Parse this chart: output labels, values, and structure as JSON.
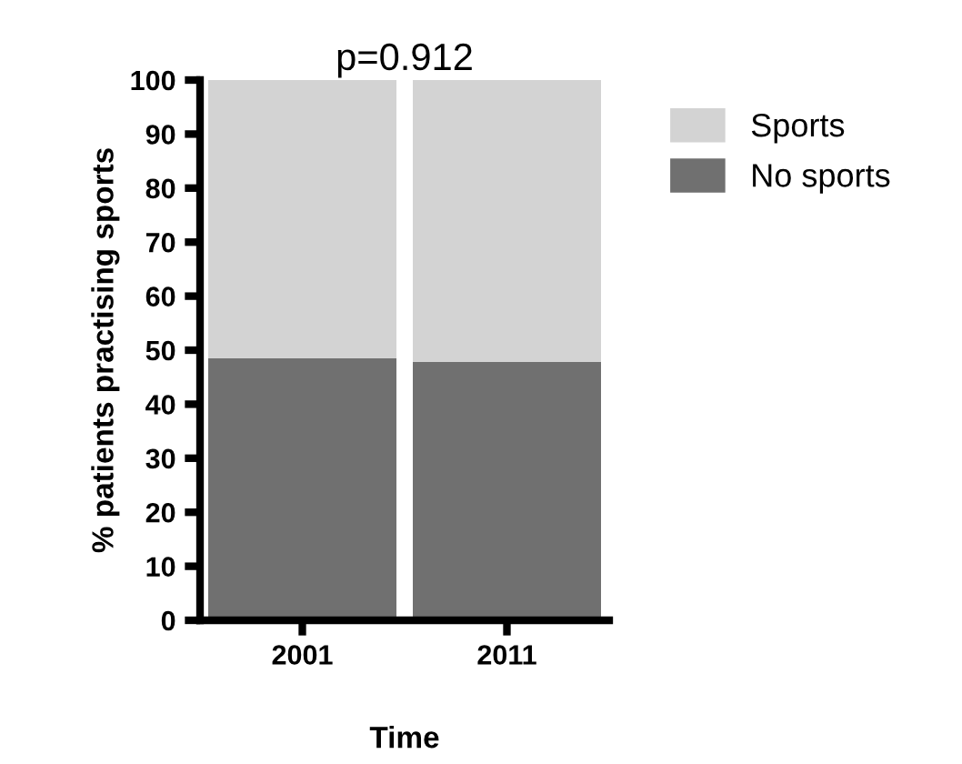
{
  "chart_data": {
    "type": "bar",
    "title": "p=0.912",
    "xlabel": "Time",
    "ylabel": "% patients practising sports",
    "categories": [
      "2001",
      "2011"
    ],
    "stacked": true,
    "series": [
      {
        "name": "No sports",
        "color": "#707070",
        "values": [
          48.5,
          47.8
        ]
      },
      {
        "name": "Sports",
        "color": "#d3d3d3",
        "values": [
          51.5,
          52.2
        ]
      }
    ],
    "ylim": [
      0,
      100
    ],
    "yticks": [
      0,
      10,
      20,
      30,
      40,
      50,
      60,
      70,
      80,
      90,
      100
    ],
    "grid": false,
    "legend": "top right"
  }
}
